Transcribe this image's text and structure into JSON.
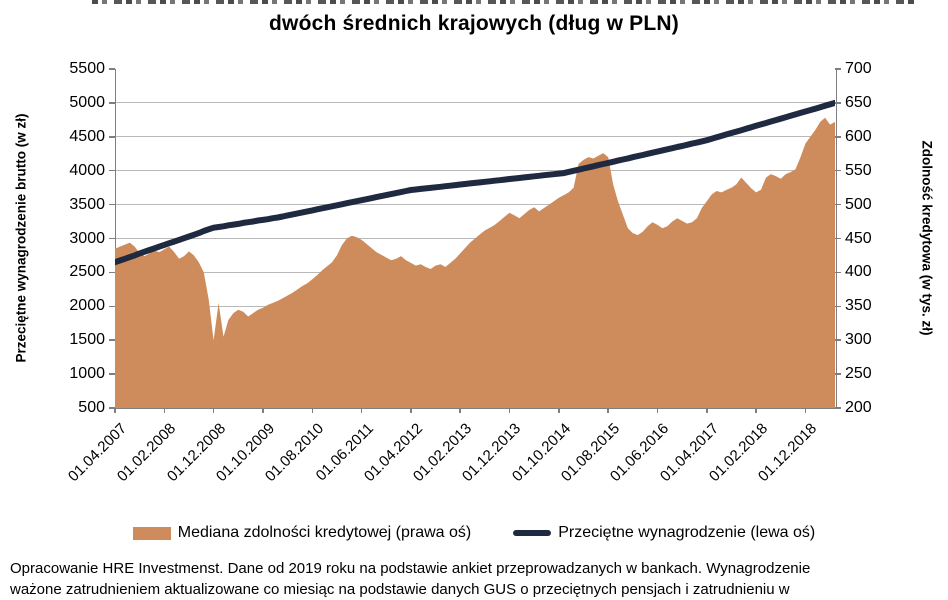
{
  "title": {
    "line1_cropped": true,
    "line2": "dwóch średnich krajowych (dług w PLN)"
  },
  "axes": {
    "left_label": "Przeciętne wynagrodzenie brutto (w zł)",
    "right_label": "Zdolność kredytowa (w tys. zł)",
    "left_ticks": [
      "5500",
      "5000",
      "4500",
      "4000",
      "3500",
      "3000",
      "2500",
      "2000",
      "1500",
      "1000",
      "500"
    ],
    "right_ticks": [
      "700",
      "650",
      "600",
      "550",
      "500",
      "450",
      "400",
      "350",
      "300",
      "250",
      "200"
    ],
    "x_tick_labels": [
      "01.04.2007",
      "01.02.2008",
      "01.12.2008",
      "01.10.2009",
      "01.08.2010",
      "01.06.2011",
      "01.04.2012",
      "01.02.2013",
      "01.12.2013",
      "01.10.2014",
      "01.08.2015",
      "01.06.2016",
      "01.04.2017",
      "01.02.2018",
      "01.12.2018"
    ],
    "x_tick_month_index": [
      0,
      10,
      20,
      30,
      40,
      50,
      60,
      70,
      80,
      90,
      100,
      110,
      120,
      130,
      140
    ]
  },
  "legend": [
    {
      "label": "Mediana zdolności kredytowej (prawa oś)",
      "swatch": "area"
    },
    {
      "label": "Przeciętne wynagrodzenie (lewa oś)",
      "swatch": "line"
    }
  ],
  "footer": {
    "line1": "Opracowanie HRE Investmenst. Dane od 2019 roku na podstawie ankiet przeprowadzanych w bankach. Wynagrodzenie",
    "line2_cropped": "ważone zatrudnieniem aktualizowane co miesiąc na podstawie danych GUS o przeciętnych pensjach i zatrudnieniu w"
  },
  "colors": {
    "area": "#CE8C5C",
    "line": "#1F2940",
    "gridline": "#B9B9B9",
    "axis_frame": "#7F7F7F",
    "text": "#000000"
  },
  "chart_data": {
    "type": "combo",
    "x_axis": {
      "start": "01.04.2007",
      "end": "01.06.2019",
      "frequency": "monthly",
      "points": 147
    },
    "left_axis": {
      "label": "Przeciętne wynagrodzenie brutto (w zł)",
      "min": 500,
      "max": 5500,
      "step": 500
    },
    "right_axis": {
      "label": "Zdolność kredytowa (w tys. zł)",
      "min": 200,
      "max": 700,
      "step": 50
    },
    "grid": true,
    "legend_position": "bottom",
    "series": [
      {
        "name": "Mediana zdolności kredytowej (prawa oś)",
        "type": "area",
        "axis": "right",
        "color": "#CE8C5C",
        "values": [
          435,
          438,
          441,
          444,
          438,
          428,
          424,
          428,
          432,
          430,
          434,
          438,
          430,
          420,
          424,
          431,
          425,
          415,
          400,
          360,
          300,
          355,
          305,
          330,
          340,
          345,
          342,
          335,
          340,
          345,
          348,
          352,
          355,
          358,
          362,
          366,
          370,
          375,
          380,
          384,
          390,
          396,
          403,
          409,
          415,
          425,
          440,
          450,
          454,
          452,
          448,
          442,
          436,
          430,
          426,
          422,
          418,
          420,
          424,
          418,
          414,
          410,
          412,
          408,
          405,
          410,
          412,
          408,
          414,
          420,
          428,
          436,
          444,
          450,
          456,
          462,
          466,
          470,
          476,
          482,
          488,
          484,
          480,
          486,
          492,
          496,
          490,
          495,
          500,
          505,
          510,
          514,
          518,
          525,
          560,
          566,
          570,
          568,
          572,
          576,
          570,
          530,
          505,
          485,
          465,
          458,
          455,
          460,
          468,
          474,
          470,
          465,
          468,
          475,
          480,
          476,
          472,
          474,
          480,
          495,
          505,
          515,
          520,
          518,
          522,
          525,
          530,
          540,
          532,
          524,
          518,
          522,
          540,
          545,
          542,
          538,
          545,
          548,
          552,
          570,
          590,
          600,
          610,
          622,
          628,
          618,
          622
        ]
      },
      {
        "name": "Przeciętne wynagrodzenie (lewa oś)",
        "type": "line",
        "axis": "left",
        "color": "#1F2940",
        "values": [
          2650,
          2675,
          2700,
          2725,
          2750,
          2780,
          2805,
          2830,
          2855,
          2880,
          2905,
          2930,
          2955,
          2980,
          3005,
          3030,
          3055,
          3080,
          3110,
          3135,
          3160,
          3170,
          3180,
          3195,
          3205,
          3215,
          3230,
          3240,
          3250,
          3265,
          3275,
          3285,
          3300,
          3310,
          3325,
          3340,
          3355,
          3370,
          3385,
          3400,
          3415,
          3430,
          3445,
          3460,
          3475,
          3490,
          3505,
          3520,
          3535,
          3550,
          3565,
          3580,
          3595,
          3610,
          3625,
          3640,
          3655,
          3670,
          3685,
          3700,
          3715,
          3723,
          3731,
          3739,
          3747,
          3755,
          3763,
          3771,
          3779,
          3787,
          3796,
          3804,
          3812,
          3820,
          3828,
          3836,
          3844,
          3852,
          3860,
          3868,
          3877,
          3885,
          3893,
          3901,
          3909,
          3917,
          3925,
          3933,
          3941,
          3949,
          3957,
          3965,
          3982,
          3999,
          4015,
          4032,
          4049,
          4065,
          4082,
          4099,
          4115,
          4132,
          4149,
          4165,
          4182,
          4199,
          4215,
          4232,
          4249,
          4265,
          4282,
          4299,
          4315,
          4332,
          4349,
          4365,
          4382,
          4399,
          4415,
          4432,
          4450,
          4471,
          4492,
          4514,
          4535,
          4556,
          4577,
          4598,
          4619,
          4640,
          4662,
          4683,
          4704,
          4725,
          4746,
          4767,
          4788,
          4810,
          4831,
          4852,
          4873,
          4894,
          4915,
          4937,
          4958,
          4979,
          5000
        ]
      }
    ]
  }
}
